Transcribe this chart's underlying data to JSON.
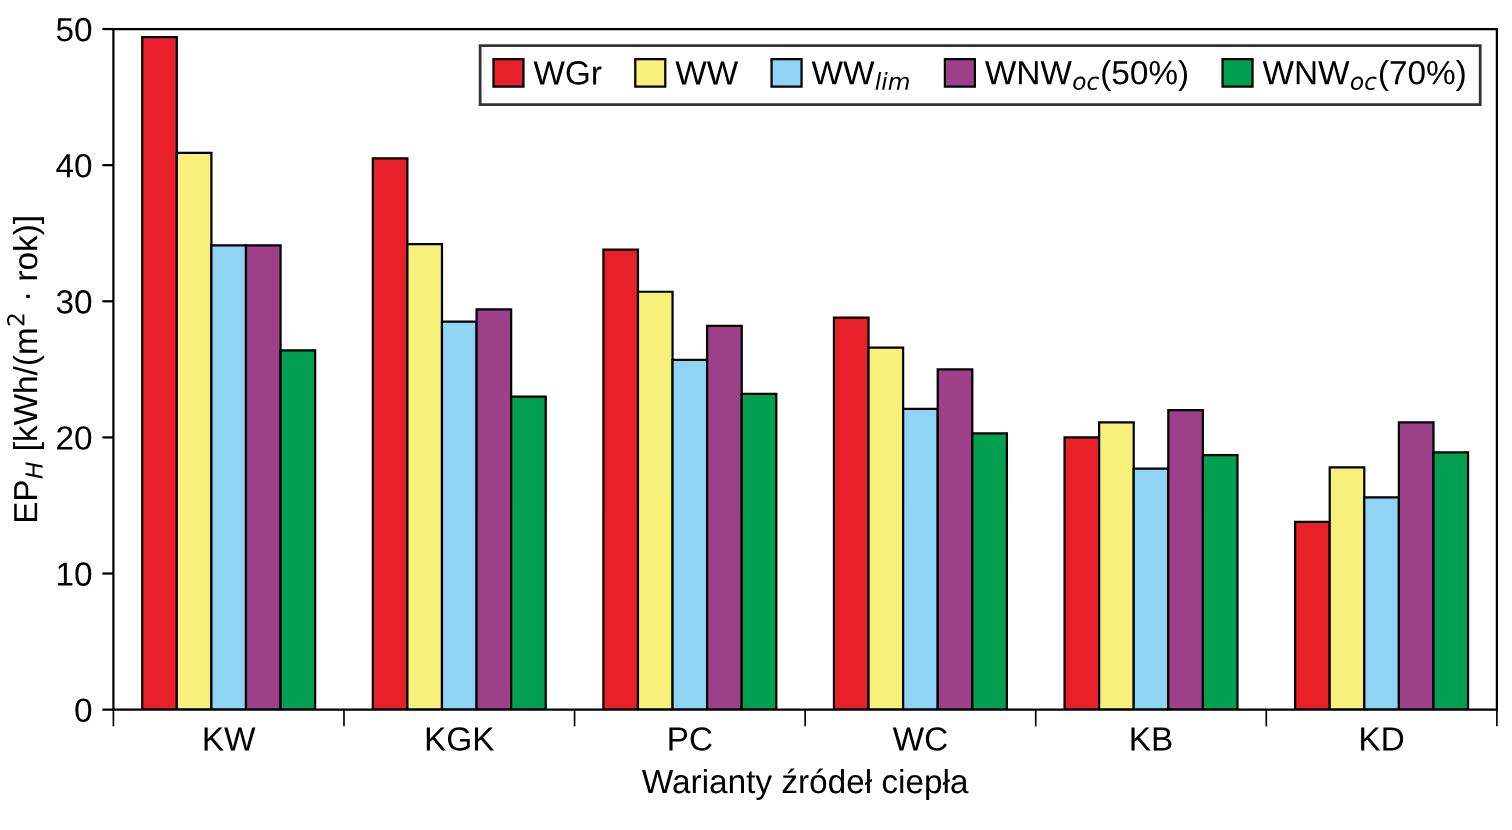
{
  "chart_data": {
    "type": "bar",
    "xlabel": "Warianty źródeł ciepła",
    "ylabel": "EP$_{H}$ [kWh/(m$^{2}$ · rok)]",
    "categories": [
      "KW",
      "KGK",
      "PC",
      "WC",
      "KB",
      "KD"
    ],
    "series": [
      {
        "name": "WGr",
        "color": "#e8202a",
        "values": [
          49.4,
          40.5,
          33.8,
          28.8,
          20.0,
          13.8
        ]
      },
      {
        "name": "WW",
        "color": "#f7f07a",
        "values": [
          40.9,
          34.2,
          30.7,
          26.6,
          21.1,
          17.8
        ]
      },
      {
        "name": "WW$_{lim}$",
        "color": "#8fd3f5",
        "values": [
          34.1,
          28.5,
          25.7,
          22.1,
          17.7,
          15.6
        ]
      },
      {
        "name": "WNW$_{oc}$(50%)",
        "color": "#9e4089",
        "values": [
          34.1,
          29.4,
          28.2,
          25.0,
          22.0,
          21.1
        ]
      },
      {
        "name": "WNW$_{oc}$(70%)",
        "color": "#00a050",
        "values": [
          26.4,
          23.0,
          23.2,
          20.3,
          18.7,
          18.9
        ]
      }
    ],
    "ylim": [
      0,
      50
    ],
    "yticks": [
      0,
      10,
      20,
      30,
      40,
      50
    ],
    "grid": false,
    "legend": "top right"
  }
}
